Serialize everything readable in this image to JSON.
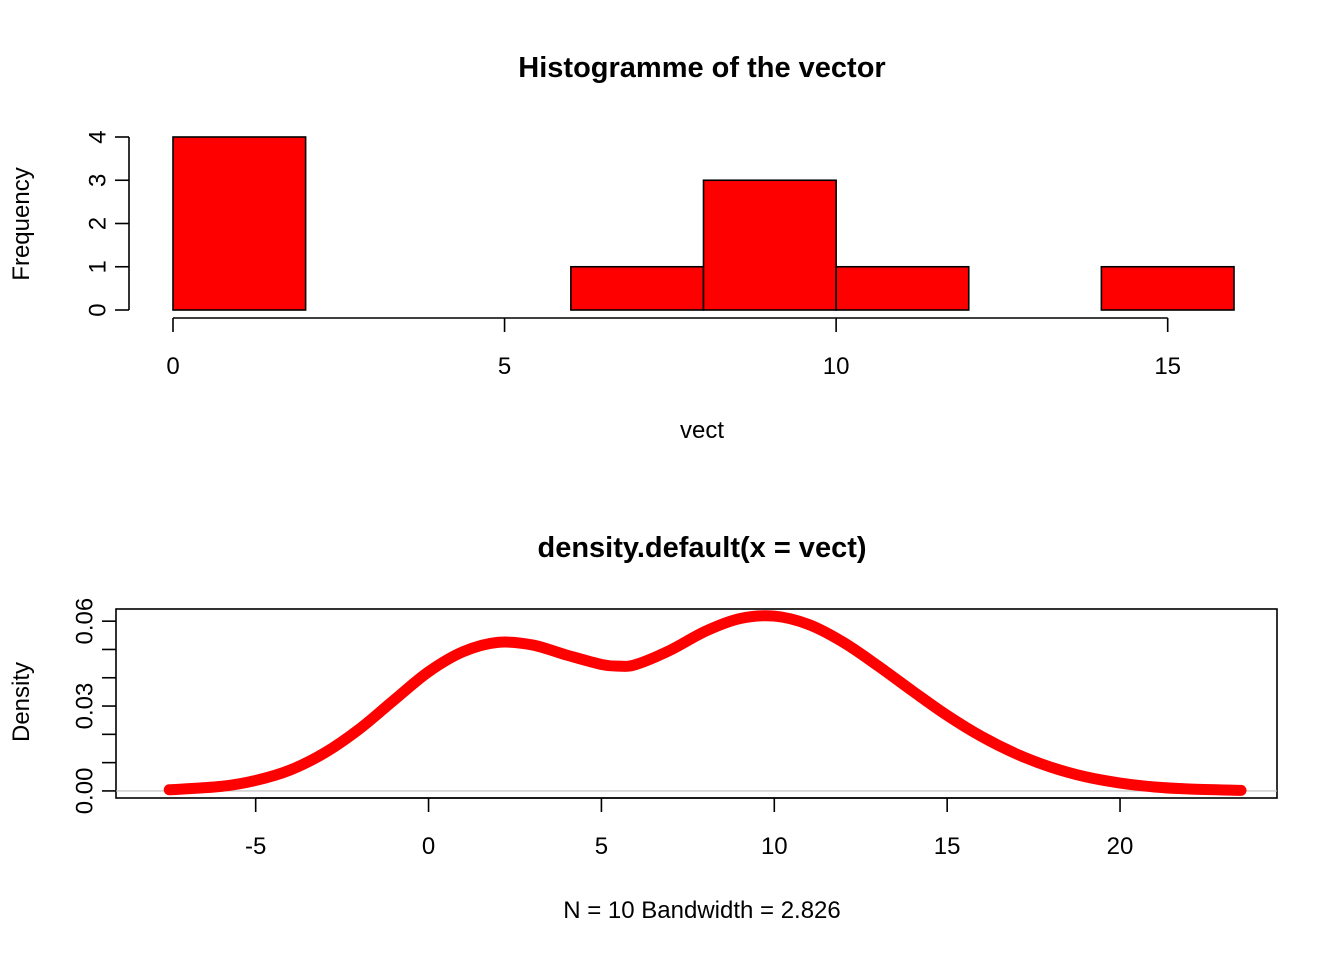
{
  "chart_data": [
    {
      "type": "bar",
      "subtype": "histogram",
      "title": "Histogramme of the vector",
      "xlabel": "vect",
      "ylabel": "Frequency",
      "bins": [
        [
          0,
          2
        ],
        [
          2,
          4
        ],
        [
          4,
          6
        ],
        [
          6,
          8
        ],
        [
          8,
          10
        ],
        [
          10,
          12
        ],
        [
          12,
          14
        ],
        [
          14,
          16
        ]
      ],
      "values": [
        4,
        0,
        0,
        1,
        3,
        1,
        0,
        1
      ],
      "xticks": [
        0,
        5,
        10,
        15
      ],
      "yticks": [
        0,
        1,
        2,
        3,
        4
      ],
      "xlim": [
        0,
        16
      ],
      "ylim": [
        0,
        4
      ],
      "bar_color": "#ff0000",
      "border_color": "#000000",
      "grid": false
    },
    {
      "type": "line",
      "subtype": "density",
      "title": "density.default(x = vect)",
      "xlabel": "N = 10   Bandwidth = 2.826",
      "ylabel": "Density",
      "x": [
        -7.5,
        -6,
        -5,
        -4,
        -3,
        -2,
        -1,
        0,
        1,
        2,
        3,
        4,
        5,
        5.5,
        6,
        7,
        8,
        9,
        10,
        11,
        12,
        13,
        14,
        15,
        16,
        17,
        18,
        19,
        20,
        21,
        22,
        23.5
      ],
      "y": [
        0.0004,
        0.0016,
        0.0037,
        0.0074,
        0.0135,
        0.0219,
        0.0321,
        0.0421,
        0.0492,
        0.0525,
        0.0516,
        0.048,
        0.0447,
        0.0441,
        0.0447,
        0.0498,
        0.0564,
        0.0609,
        0.0618,
        0.0588,
        0.0525,
        0.0442,
        0.0353,
        0.0267,
        0.0192,
        0.0131,
        0.0084,
        0.005,
        0.0028,
        0.0014,
        0.0007,
        0.0002
      ],
      "xticks": [
        -5,
        0,
        5,
        10,
        15,
        20
      ],
      "yticks": [
        0.0,
        0.03,
        0.06
      ],
      "ytick_minor": [
        0.01,
        0.02,
        0.04,
        0.05
      ],
      "ytick_labels": [
        "0.00",
        "0.03",
        "0.06"
      ],
      "xlim": [
        -9.04,
        24.54
      ],
      "ylim": [
        -0.0025,
        0.0643
      ],
      "line_color": "#ff0000",
      "zero_line_color": "#bebebe",
      "grid": false
    }
  ]
}
